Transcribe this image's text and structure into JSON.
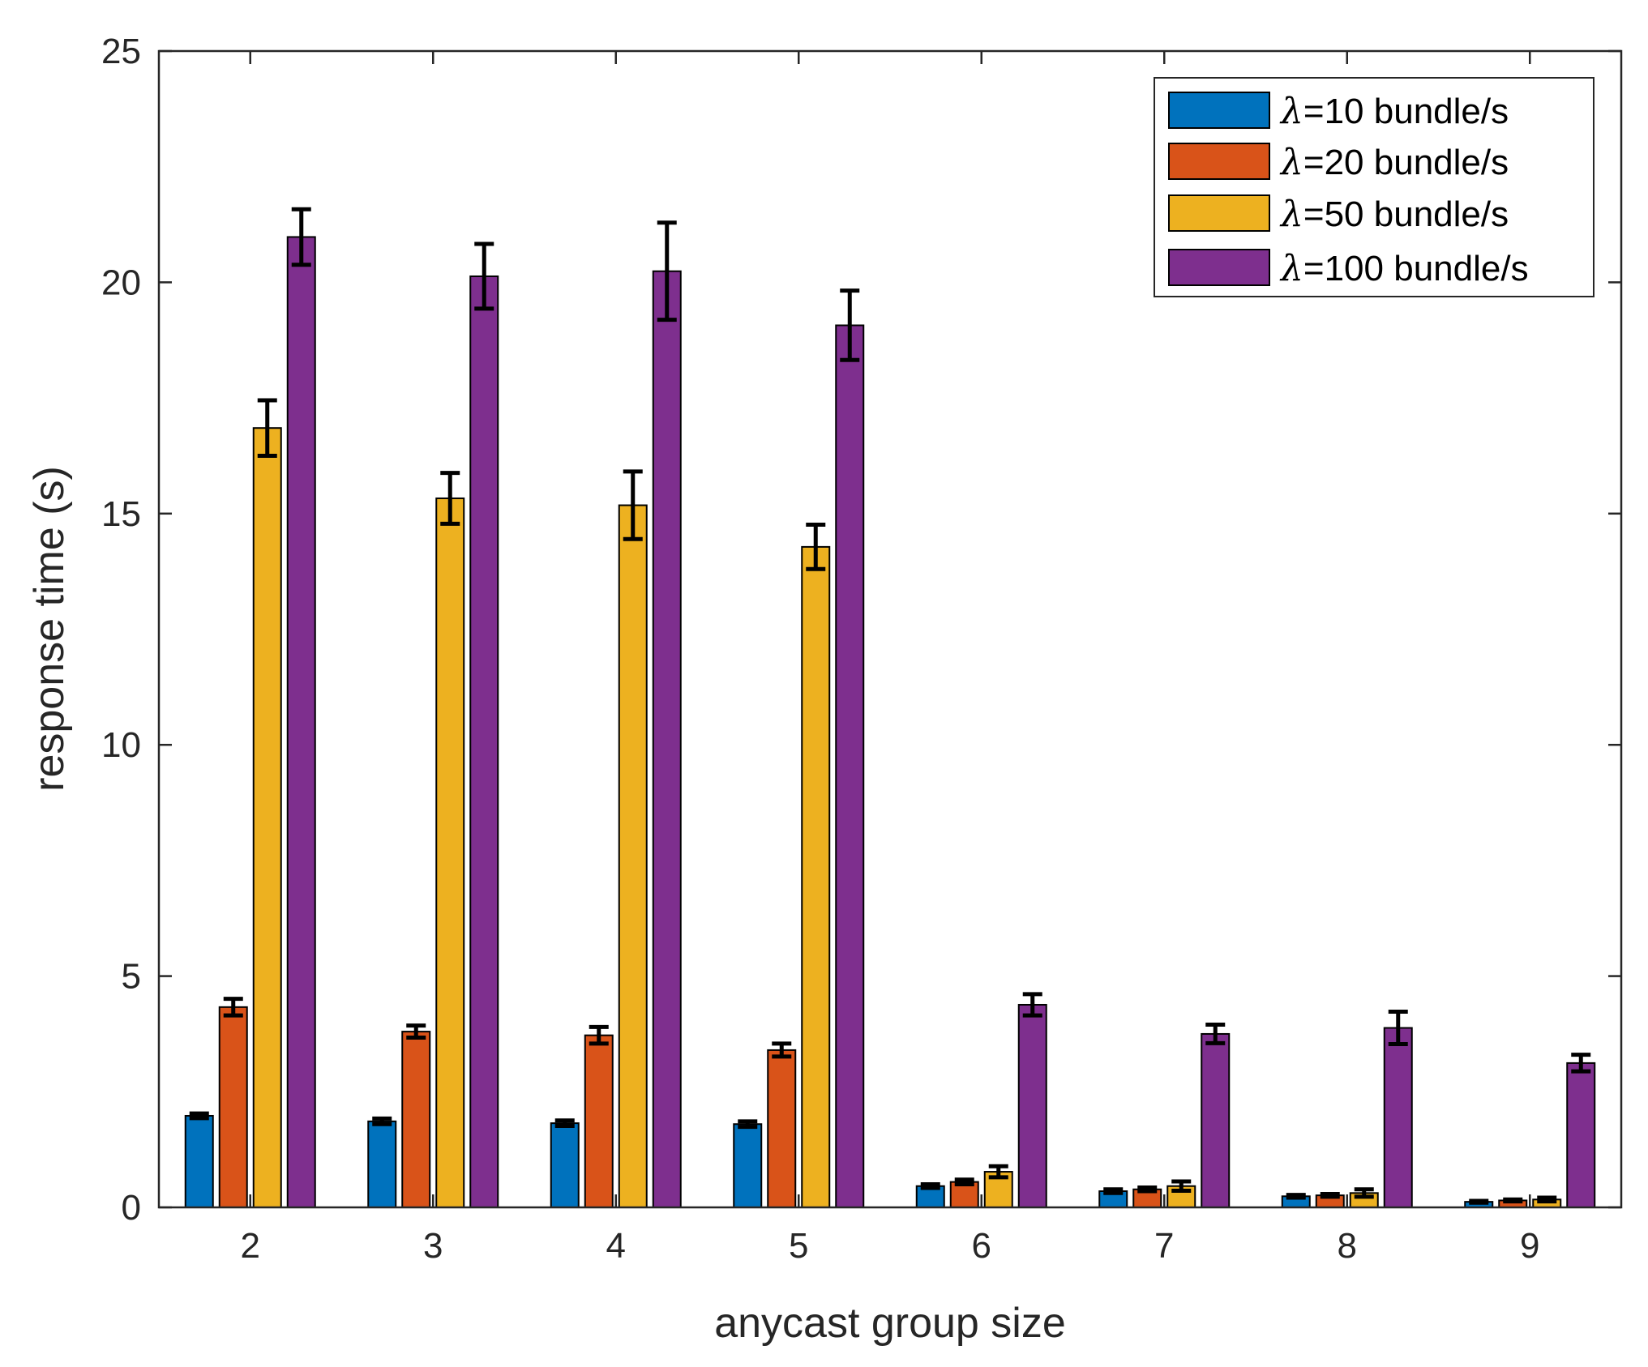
{
  "chart_data": {
    "type": "bar",
    "title": "",
    "xlabel": "anycast group size",
    "ylabel": "response time (s)",
    "categories": [
      "2",
      "3",
      "4",
      "5",
      "6",
      "7",
      "8",
      "9"
    ],
    "ylim": [
      0,
      25
    ],
    "yticks": [
      "0",
      "5",
      "10",
      "15",
      "20",
      "25"
    ],
    "grid": false,
    "legend_position": "top-right",
    "error_bars": true,
    "series": [
      {
        "name": "λ=10 bundle/s",
        "legend_symbol": "λ",
        "legend_text": "=10 bundle/s",
        "color": "#0072BD",
        "values": [
          1.98,
          1.86,
          1.82,
          1.8,
          0.46,
          0.35,
          0.24,
          0.12
        ],
        "errors": [
          0.05,
          0.06,
          0.06,
          0.06,
          0.04,
          0.04,
          0.03,
          0.02
        ]
      },
      {
        "name": "λ=20 bundle/s",
        "legend_symbol": "λ",
        "legend_text": "=20 bundle/s",
        "color": "#D95319",
        "values": [
          4.33,
          3.8,
          3.72,
          3.4,
          0.55,
          0.39,
          0.26,
          0.15
        ],
        "errors": [
          0.18,
          0.13,
          0.18,
          0.14,
          0.05,
          0.04,
          0.03,
          0.02
        ]
      },
      {
        "name": "λ=50 bundle/s",
        "legend_symbol": "λ",
        "legend_text": "=50 bundle/s",
        "color": "#EDB120",
        "values": [
          16.85,
          15.33,
          15.18,
          14.28,
          0.77,
          0.46,
          0.31,
          0.17
        ],
        "errors": [
          0.6,
          0.55,
          0.73,
          0.48,
          0.12,
          0.1,
          0.08,
          0.04
        ]
      },
      {
        "name": "λ=100 bundle/s",
        "legend_symbol": "λ",
        "legend_text": "=100 bundle/s",
        "color": "#7E2F8E",
        "values": [
          20.98,
          20.13,
          20.24,
          19.07,
          4.38,
          3.75,
          3.88,
          3.12
        ],
        "errors": [
          0.6,
          0.7,
          1.05,
          0.75,
          0.23,
          0.2,
          0.35,
          0.18
        ]
      }
    ]
  }
}
